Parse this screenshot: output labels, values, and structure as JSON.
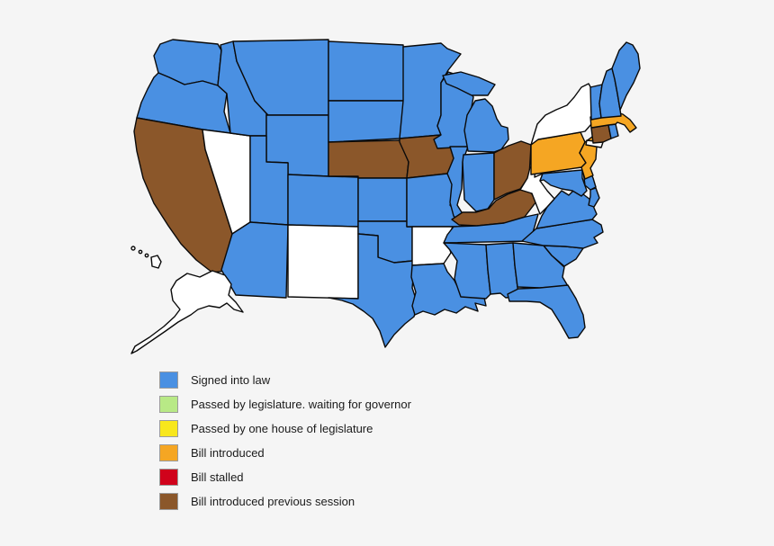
{
  "page": {
    "background_color": "#f5f5f5",
    "title": "US state bill status map"
  },
  "legend": {
    "items": [
      {
        "status": "signed",
        "label": "Signed into law",
        "color": "#4A90E2"
      },
      {
        "status": "passed_waiting",
        "label": "Passed by legislature. waiting for governor",
        "color": "#B8E986"
      },
      {
        "status": "passed_one_house",
        "label": "Passed by one house of legislature",
        "color": "#F8E71C"
      },
      {
        "status": "introduced",
        "label": "Bill introduced",
        "color": "#F5A623"
      },
      {
        "status": "stalled",
        "label": "Bill stalled",
        "color": "#D0021B"
      },
      {
        "status": "introduced_previous",
        "label": "Bill introduced previous session",
        "color": "#8B572A"
      }
    ],
    "swatch_border_color": "#9b9b9b"
  },
  "map": {
    "stroke_color": "#0a0a0a",
    "no_action_color": "#ffffff",
    "states": [
      {
        "id": "WA",
        "name": "Washington",
        "status": "signed"
      },
      {
        "id": "OR",
        "name": "Oregon",
        "status": "signed"
      },
      {
        "id": "CA",
        "name": "California",
        "status": "introduced_previous"
      },
      {
        "id": "NV",
        "name": "Nevada",
        "status": "none"
      },
      {
        "id": "ID",
        "name": "Idaho",
        "status": "signed"
      },
      {
        "id": "MT",
        "name": "Montana",
        "status": "signed"
      },
      {
        "id": "WY",
        "name": "Wyoming",
        "status": "signed"
      },
      {
        "id": "UT",
        "name": "Utah",
        "status": "signed"
      },
      {
        "id": "CO",
        "name": "Colorado",
        "status": "signed"
      },
      {
        "id": "AZ",
        "name": "Arizona",
        "status": "signed"
      },
      {
        "id": "NM",
        "name": "New Mexico",
        "status": "none"
      },
      {
        "id": "ND",
        "name": "North Dakota",
        "status": "signed"
      },
      {
        "id": "SD",
        "name": "South Dakota",
        "status": "signed"
      },
      {
        "id": "NE",
        "name": "Nebraska",
        "status": "introduced_previous"
      },
      {
        "id": "KS",
        "name": "Kansas",
        "status": "signed"
      },
      {
        "id": "OK",
        "name": "Oklahoma",
        "status": "signed"
      },
      {
        "id": "TX",
        "name": "Texas",
        "status": "signed"
      },
      {
        "id": "MN",
        "name": "Minnesota",
        "status": "signed"
      },
      {
        "id": "IA",
        "name": "Iowa",
        "status": "introduced_previous"
      },
      {
        "id": "MO",
        "name": "Missouri",
        "status": "signed"
      },
      {
        "id": "AR",
        "name": "Arkansas",
        "status": "none"
      },
      {
        "id": "LA",
        "name": "Louisiana",
        "status": "signed"
      },
      {
        "id": "WI",
        "name": "Wisconsin",
        "status": "signed"
      },
      {
        "id": "IL",
        "name": "Illinois",
        "status": "signed"
      },
      {
        "id": "MI",
        "name": "Michigan",
        "status": "signed"
      },
      {
        "id": "IN",
        "name": "Indiana",
        "status": "signed"
      },
      {
        "id": "OH",
        "name": "Ohio",
        "status": "introduced_previous"
      },
      {
        "id": "KY",
        "name": "Kentucky",
        "status": "introduced_previous"
      },
      {
        "id": "TN",
        "name": "Tennessee",
        "status": "signed"
      },
      {
        "id": "MS",
        "name": "Mississippi",
        "status": "signed"
      },
      {
        "id": "AL",
        "name": "Alabama",
        "status": "signed"
      },
      {
        "id": "GA",
        "name": "Georgia",
        "status": "signed"
      },
      {
        "id": "FL",
        "name": "Florida",
        "status": "signed"
      },
      {
        "id": "SC",
        "name": "South Carolina",
        "status": "signed"
      },
      {
        "id": "NC",
        "name": "North Carolina",
        "status": "signed"
      },
      {
        "id": "VA",
        "name": "Virginia",
        "status": "signed"
      },
      {
        "id": "WV",
        "name": "West Virginia",
        "status": "none"
      },
      {
        "id": "MD",
        "name": "Maryland",
        "status": "signed"
      },
      {
        "id": "DE",
        "name": "Delaware",
        "status": "signed"
      },
      {
        "id": "PA",
        "name": "Pennsylvania",
        "status": "introduced"
      },
      {
        "id": "NJ",
        "name": "New Jersey",
        "status": "introduced"
      },
      {
        "id": "NY",
        "name": "New York",
        "status": "none"
      },
      {
        "id": "CT",
        "name": "Connecticut",
        "status": "introduced_previous"
      },
      {
        "id": "RI",
        "name": "Rhode Island",
        "status": "signed"
      },
      {
        "id": "MA",
        "name": "Massachusetts",
        "status": "introduced"
      },
      {
        "id": "VT",
        "name": "Vermont",
        "status": "signed"
      },
      {
        "id": "NH",
        "name": "New Hampshire",
        "status": "signed"
      },
      {
        "id": "ME",
        "name": "Maine",
        "status": "signed"
      },
      {
        "id": "AK",
        "name": "Alaska",
        "status": "none"
      },
      {
        "id": "HI",
        "name": "Hawaii",
        "status": "none"
      }
    ]
  }
}
